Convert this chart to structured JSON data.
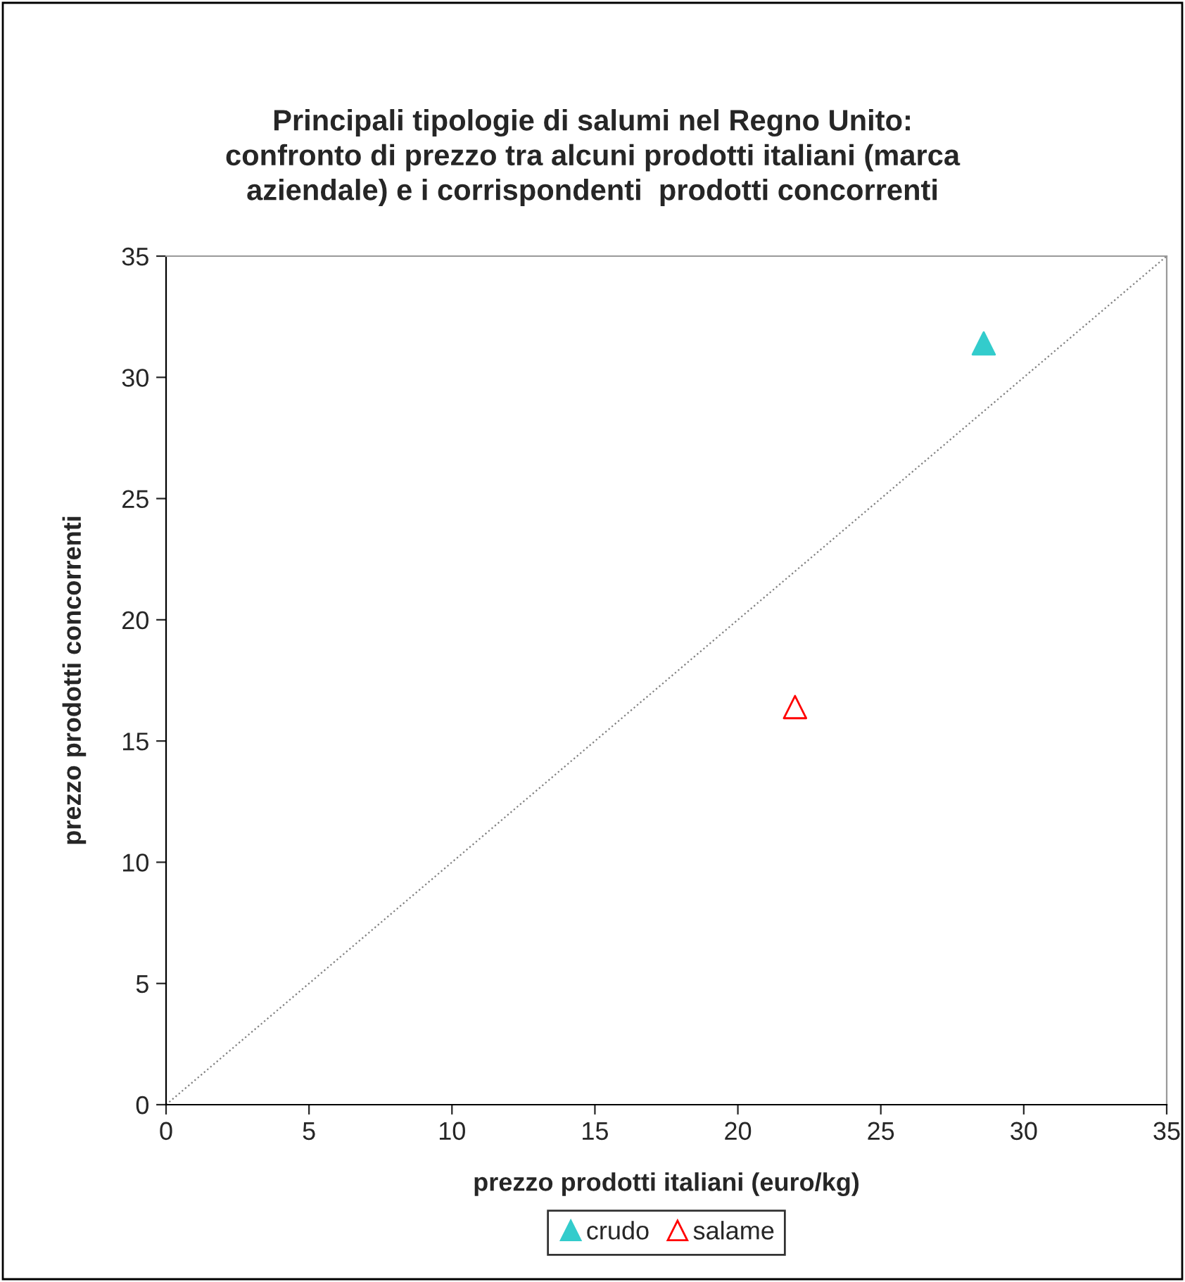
{
  "chart_data": {
    "type": "scatter",
    "title": "Principali tipologie di salumi nel Regno Unito:\nconfronto di prezzo tra alcuni prodotti italiani (marca\naziendale) e i corrispondenti  prodotti concorrenti",
    "xlabel": "prezzo prodotti italiani (euro/kg)",
    "ylabel": "prezzo prodotti concorrenti",
    "xlim": [
      0,
      35
    ],
    "ylim": [
      0,
      35
    ],
    "xticks": [
      0,
      5,
      10,
      15,
      20,
      25,
      30,
      35
    ],
    "yticks": [
      0,
      5,
      10,
      15,
      20,
      25,
      30,
      35
    ],
    "legend": "bottom",
    "grid": false,
    "series": [
      {
        "name": "crudo",
        "color": "#33cccc",
        "marker": "triangle",
        "x": [
          28.6
        ],
        "values": [
          31.4
        ]
      },
      {
        "name": "salame",
        "color": "#ff0000",
        "marker": "triangle",
        "x": [
          22.0
        ],
        "values": [
          16.4
        ]
      },
      {
        "type": "line",
        "color": "#808080",
        "line_style": "dotted",
        "marker": "none",
        "x": [
          0,
          35
        ],
        "values": [
          0,
          35
        ]
      }
    ]
  }
}
